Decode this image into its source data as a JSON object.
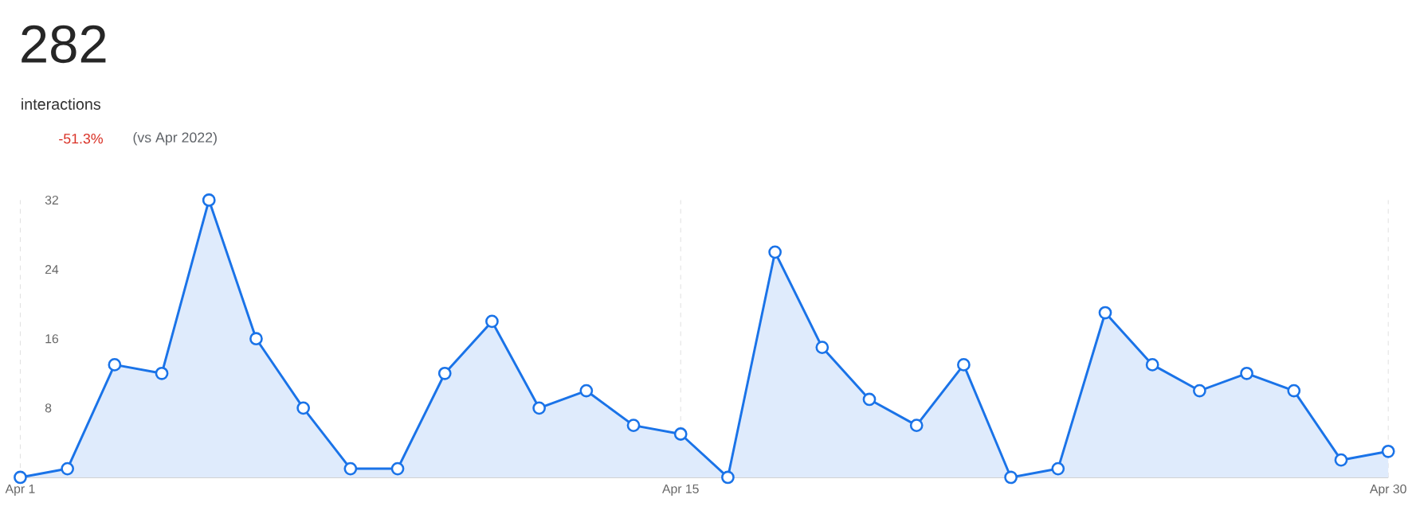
{
  "chart_data": {
    "type": "area",
    "title": "282",
    "subtitle": "interactions",
    "annotations": [
      "-51.3%",
      "(vs Apr 2022)"
    ],
    "categories": [
      "Apr 1",
      null,
      null,
      null,
      null,
      null,
      null,
      null,
      null,
      null,
      null,
      null,
      null,
      null,
      "Apr 15",
      null,
      null,
      null,
      null,
      null,
      null,
      null,
      null,
      null,
      null,
      null,
      null,
      null,
      null,
      "Apr 30"
    ],
    "series": [
      {
        "color": "#1a73e8",
        "values": [
          0,
          1,
          13,
          12,
          32,
          16,
          8,
          1,
          1,
          12,
          18,
          8,
          10,
          6,
          5,
          0,
          26,
          15,
          9,
          6,
          13,
          0,
          1,
          19,
          13,
          10,
          12,
          10,
          2,
          3
        ]
      }
    ],
    "ylim": [
      0,
      32
    ],
    "yticks": [
      8,
      16,
      24,
      32
    ],
    "grid": "x",
    "marker": "circle"
  }
}
